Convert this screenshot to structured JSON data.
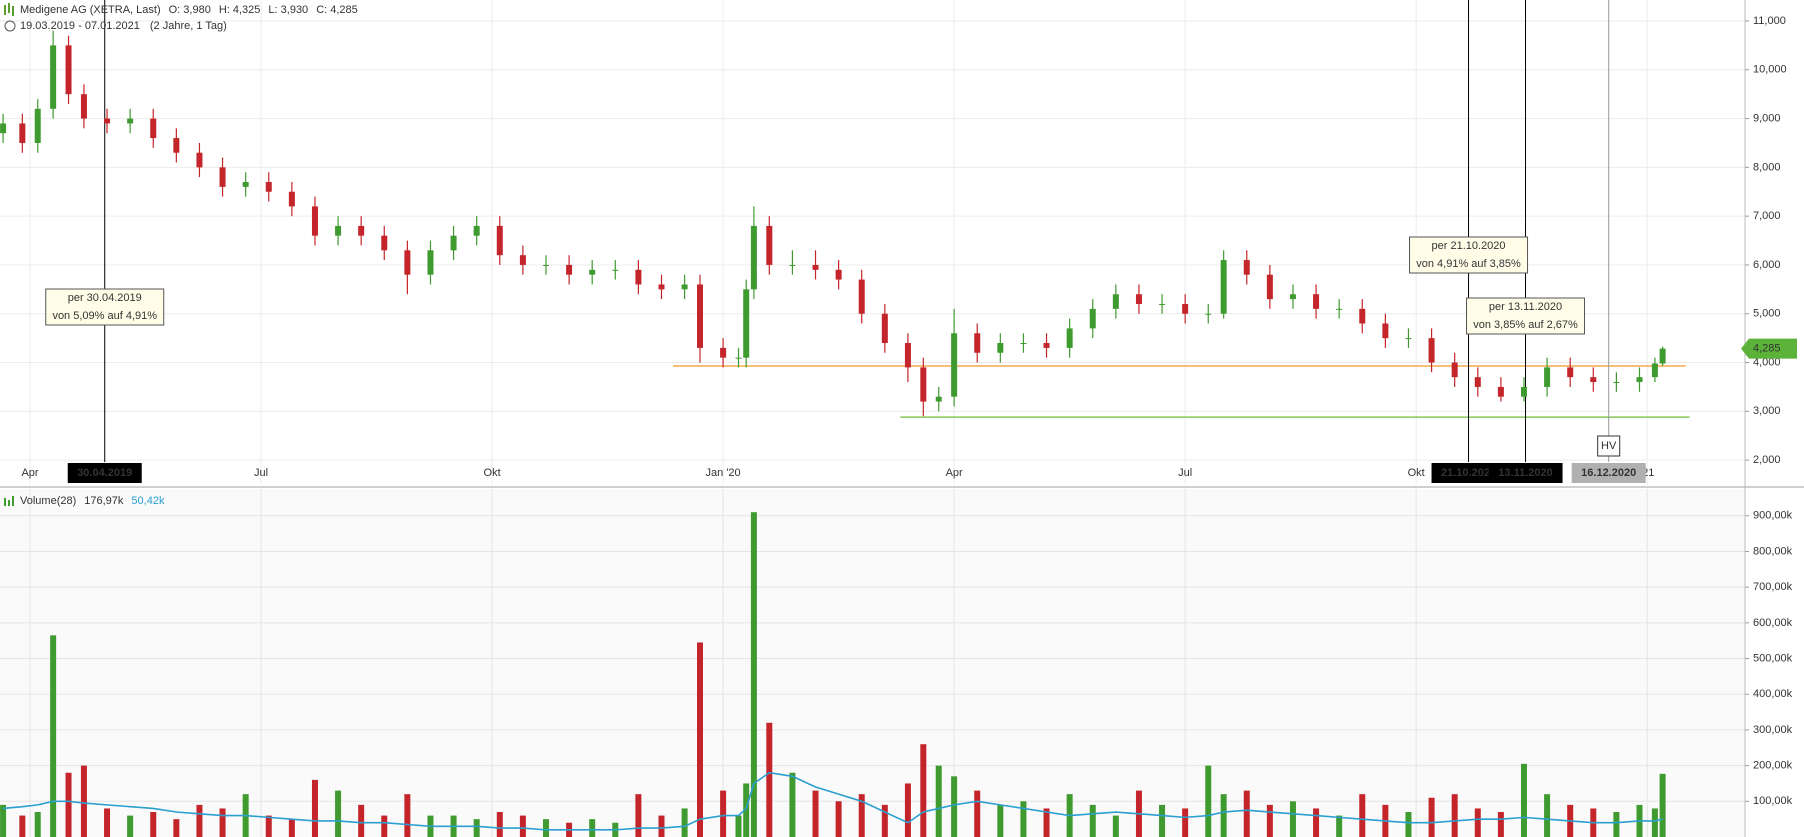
{
  "chart_data": {
    "type": "candlestick",
    "title": "Medigene AG (XETRA, Last)",
    "ohlc_labels": [
      "O: 3,980",
      "H: 4,325",
      "L: 3,930",
      "C: 4,285"
    ],
    "range_label": "19.03.2019 - 07.01.2021",
    "range_note": "(2 Jahre, 1 Tag)",
    "x": [
      2.65,
      2.9,
      3.1,
      3.3,
      3.5,
      3.7,
      4.0,
      4.3,
      4.6,
      4.9,
      5.2,
      5.5,
      5.8,
      6.1,
      6.4,
      6.7,
      7.0,
      7.3,
      7.6,
      7.9,
      8.2,
      8.5,
      8.8,
      9.1,
      9.4,
      9.7,
      10.0,
      10.3,
      10.6,
      10.9,
      11.2,
      11.5,
      11.7,
      12.0,
      12.2,
      12.3,
      12.4,
      12.6,
      12.9,
      13.2,
      13.5,
      13.8,
      14.1,
      14.4,
      14.6,
      14.8,
      15.0,
      15.3,
      15.6,
      15.9,
      16.2,
      16.5,
      16.8,
      17.1,
      17.4,
      17.7,
      18.0,
      18.3,
      18.5,
      18.8,
      19.1,
      19.4,
      19.7,
      20.0,
      20.3,
      20.6,
      20.9,
      21.2,
      21.5,
      21.8,
      22.1,
      22.4,
      22.7,
      23.0,
      23.3,
      23.6,
      23.9,
      24.1,
      24.2
    ],
    "open": [
      8.7,
      8.9,
      8.5,
      9.2,
      10.5,
      9.5,
      9.0,
      8.9,
      9.0,
      8.6,
      8.3,
      8.0,
      7.6,
      7.7,
      7.5,
      7.2,
      6.6,
      6.8,
      6.6,
      6.3,
      5.8,
      6.3,
      6.6,
      6.8,
      6.2,
      6.0,
      6.0,
      5.8,
      5.9,
      5.9,
      5.6,
      5.5,
      5.6,
      4.3,
      4.1,
      4.1,
      5.5,
      6.8,
      6.0,
      6.0,
      5.9,
      5.7,
      5.0,
      4.4,
      3.9,
      3.2,
      3.3,
      4.6,
      4.2,
      4.4,
      4.4,
      4.3,
      4.7,
      5.1,
      5.4,
      5.2,
      5.2,
      5.0,
      5.0,
      6.1,
      5.8,
      5.3,
      5.4,
      5.1,
      5.1,
      4.8,
      4.5,
      4.5,
      4.0,
      3.7,
      3.5,
      3.3,
      3.5,
      3.9,
      3.7,
      3.6,
      3.6,
      3.7,
      3.98
    ],
    "high": [
      9.1,
      9.1,
      9.4,
      10.8,
      10.7,
      9.7,
      9.2,
      9.2,
      9.2,
      8.8,
      8.5,
      8.2,
      7.9,
      7.9,
      7.7,
      7.4,
      7.0,
      7.0,
      6.8,
      6.5,
      6.5,
      6.8,
      7.0,
      7.0,
      6.4,
      6.2,
      6.2,
      6.1,
      6.1,
      6.1,
      5.8,
      5.8,
      5.8,
      4.5,
      4.3,
      5.7,
      7.2,
      7.0,
      6.3,
      6.3,
      6.1,
      5.9,
      5.2,
      4.6,
      4.1,
      3.5,
      5.1,
      4.8,
      4.6,
      4.6,
      4.6,
      4.9,
      5.3,
      5.6,
      5.6,
      5.4,
      5.4,
      5.2,
      6.3,
      6.3,
      6.0,
      5.6,
      5.6,
      5.3,
      5.3,
      5.0,
      4.7,
      4.7,
      4.2,
      3.9,
      3.7,
      3.7,
      4.1,
      4.1,
      3.9,
      3.8,
      3.9,
      4.1,
      4.325
    ],
    "low": [
      8.5,
      8.3,
      8.3,
      9.0,
      9.3,
      8.8,
      8.7,
      8.7,
      8.4,
      8.1,
      7.8,
      7.4,
      7.4,
      7.3,
      7.0,
      6.4,
      6.4,
      6.4,
      6.1,
      5.4,
      5.6,
      6.1,
      6.4,
      6.0,
      5.8,
      5.8,
      5.6,
      5.6,
      5.7,
      5.4,
      5.3,
      5.3,
      4.0,
      3.9,
      3.9,
      3.9,
      5.3,
      5.8,
      5.8,
      5.7,
      5.5,
      4.8,
      4.2,
      3.6,
      2.9,
      3.0,
      3.1,
      4.0,
      4.0,
      4.2,
      4.1,
      4.1,
      4.5,
      4.9,
      5.0,
      5.0,
      4.8,
      4.8,
      4.9,
      5.6,
      5.1,
      5.1,
      4.9,
      4.9,
      4.6,
      4.3,
      4.3,
      3.8,
      3.5,
      3.3,
      3.2,
      3.2,
      3.3,
      3.5,
      3.4,
      3.4,
      3.4,
      3.6,
      3.93
    ],
    "close": [
      8.9,
      8.5,
      9.2,
      10.5,
      9.5,
      9.0,
      8.9,
      9.0,
      8.6,
      8.3,
      8.0,
      7.6,
      7.7,
      7.5,
      7.2,
      6.6,
      6.8,
      6.6,
      6.3,
      5.8,
      6.3,
      6.6,
      6.8,
      6.2,
      6.0,
      6.0,
      5.8,
      5.9,
      5.9,
      5.6,
      5.5,
      5.6,
      4.3,
      4.1,
      4.1,
      5.5,
      6.8,
      6.0,
      6.0,
      5.9,
      5.7,
      5.0,
      4.4,
      3.9,
      3.2,
      3.3,
      4.6,
      4.2,
      4.4,
      4.4,
      4.3,
      4.7,
      5.1,
      5.4,
      5.2,
      5.2,
      5.0,
      5.0,
      6.1,
      5.8,
      5.3,
      5.4,
      5.1,
      5.1,
      4.8,
      4.5,
      4.5,
      4.0,
      3.7,
      3.5,
      3.3,
      3.5,
      3.9,
      3.7,
      3.6,
      3.6,
      3.7,
      3.98,
      4.285
    ],
    "up_color": "#3f9b2f",
    "down_color": "#c4252a",
    "xlim": [
      2.61,
      25.27
    ],
    "xticks": [
      {
        "value": 3,
        "label": "Apr"
      },
      {
        "value": 6,
        "label": "Jul"
      },
      {
        "value": 9,
        "label": "Okt"
      },
      {
        "value": 12,
        "label": "Jan '20"
      },
      {
        "value": 15,
        "label": "Apr"
      },
      {
        "value": 18,
        "label": "Jul"
      },
      {
        "value": 21,
        "label": "Okt"
      },
      {
        "value": 24,
        "label": "'21"
      }
    ],
    "ylim": [
      1.49,
      11.43
    ],
    "yticks": [
      {
        "value": 2,
        "label": "2,000"
      },
      {
        "value": 3,
        "label": "3,000"
      },
      {
        "value": 4,
        "label": "4,000"
      },
      {
        "value": 5,
        "label": "5,000"
      },
      {
        "value": 6,
        "label": "6,000"
      },
      {
        "value": 7,
        "label": "7,000"
      },
      {
        "value": 8,
        "label": "8,000"
      },
      {
        "value": 9,
        "label": "9,000"
      },
      {
        "value": 10,
        "label": "10,000"
      },
      {
        "value": 11,
        "label": "11,000"
      }
    ],
    "grid": true,
    "levels": [
      {
        "value": 3.93,
        "from": 11.35,
        "to": 24.5,
        "color": "#f5a94a"
      },
      {
        "value": 2.88,
        "from": 14.3,
        "to": 24.55,
        "color": "#86c85a"
      }
    ],
    "events": [
      {
        "x": 3.97,
        "badge": "30.04.2019",
        "badge_color": "#000000",
        "lines": [
          "per 30.04.2019",
          "von 5,09% auf 4,91%"
        ]
      },
      {
        "x": 21.68,
        "badge": "21.10.2020",
        "badge_color": "#000000",
        "lines": [
          "per 21.10.2020",
          "von 4,91% auf 3,85%"
        ]
      },
      {
        "x": 22.42,
        "badge": "13.11.2020",
        "badge_color": "#000000",
        "lines": [
          "per 13.11.2020",
          "von 3,85% auf 2,67%"
        ]
      },
      {
        "x": 23.5,
        "badge": "16.12.2020",
        "badge_color": "#b0b0b0",
        "marker": "HV"
      }
    ],
    "last_tag": {
      "value": 4.285,
      "label": "4,285",
      "color": "#5cb33a"
    },
    "volume": {
      "title": "Volume(28)",
      "last_label": "176,97k",
      "avg_label": "50,42k",
      "avg_color": "#2a9fd0",
      "values": [
        90000,
        60000,
        70000,
        565000,
        180000,
        200000,
        80000,
        60000,
        70000,
        50000,
        90000,
        80000,
        120000,
        60000,
        50000,
        160000,
        130000,
        90000,
        60000,
        120000,
        60000,
        60000,
        50000,
        70000,
        60000,
        50000,
        40000,
        50000,
        40000,
        120000,
        60000,
        80000,
        545000,
        130000,
        60000,
        150000,
        910000,
        320000,
        180000,
        130000,
        100000,
        120000,
        90000,
        150000,
        260000,
        200000,
        170000,
        130000,
        90000,
        100000,
        80000,
        120000,
        90000,
        60000,
        130000,
        90000,
        80000,
        200000,
        120000,
        130000,
        90000,
        100000,
        80000,
        60000,
        120000,
        90000,
        70000,
        110000,
        120000,
        80000,
        70000,
        205000,
        120000,
        90000,
        80000,
        70000,
        90000,
        80000,
        176970
      ],
      "avg_values": [
        80000,
        85000,
        90000,
        100000,
        100000,
        95000,
        90000,
        85000,
        80000,
        70000,
        65000,
        60000,
        60000,
        55000,
        50000,
        45000,
        45000,
        40000,
        40000,
        35000,
        30000,
        30000,
        30000,
        25000,
        25000,
        20000,
        20000,
        20000,
        20000,
        25000,
        25000,
        30000,
        50000,
        60000,
        60000,
        80000,
        150000,
        180000,
        170000,
        140000,
        120000,
        100000,
        70000,
        40000,
        70000,
        80000,
        90000,
        100000,
        90000,
        80000,
        70000,
        60000,
        65000,
        70000,
        65000,
        60000,
        55000,
        60000,
        70000,
        75000,
        70000,
        65000,
        60000,
        55000,
        50000,
        45000,
        40000,
        40000,
        45000,
        50000,
        50000,
        55000,
        50000,
        45000,
        40000,
        40000,
        45000,
        45000,
        50420
      ],
      "ylim": [
        0,
        975000
      ],
      "yticks": [
        {
          "value": 100000,
          "label": "100,00k"
        },
        {
          "value": 200000,
          "label": "200,00k"
        },
        {
          "value": 300000,
          "label": "300,00k"
        },
        {
          "value": 400000,
          "label": "400,00k"
        },
        {
          "value": 500000,
          "label": "500,00k"
        },
        {
          "value": 600000,
          "label": "600,00k"
        },
        {
          "value": 700000,
          "label": "700,00k"
        },
        {
          "value": 800000,
          "label": "800,00k"
        },
        {
          "value": 900000,
          "label": "900,00k"
        }
      ]
    }
  }
}
